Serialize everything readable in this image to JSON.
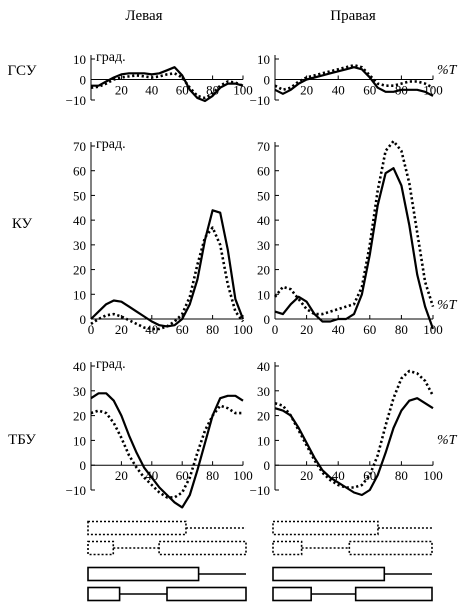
{
  "columns": [
    "Левая",
    "Правая"
  ],
  "rows": [
    "ГСУ",
    "КУ",
    "ТБУ"
  ],
  "unit_label": "град.",
  "pct_label": "%T",
  "chart_data": [
    {
      "type": "line",
      "row": "ГСУ",
      "column": "Левая",
      "xlim": [
        0,
        100
      ],
      "ylim": [
        -10,
        10
      ],
      "xticks": [
        20,
        40,
        60,
        80,
        100
      ],
      "yticks": [
        -10,
        0,
        10
      ],
      "series": [
        {
          "style": "solid",
          "x": [
            0,
            5,
            10,
            15,
            20,
            25,
            30,
            35,
            40,
            45,
            50,
            55,
            60,
            65,
            70,
            75,
            80,
            85,
            90,
            95,
            100
          ],
          "y": [
            -3,
            -3,
            -1,
            1,
            2.5,
            3,
            3,
            3,
            2.5,
            3,
            4.5,
            6,
            2,
            -5,
            -9,
            -10.5,
            -8,
            -4,
            -2,
            -2,
            -3
          ]
        },
        {
          "style": "dotted",
          "x": [
            0,
            5,
            10,
            15,
            20,
            25,
            30,
            35,
            40,
            45,
            50,
            55,
            60,
            65,
            70,
            75,
            80,
            85,
            90,
            95,
            100
          ],
          "y": [
            -4,
            -3.5,
            -2,
            0,
            1,
            1.5,
            2,
            1.5,
            1,
            1.5,
            2.5,
            3,
            1,
            -4,
            -8,
            -9,
            -7,
            -3,
            -1,
            -1.5,
            -3
          ]
        }
      ]
    },
    {
      "type": "line",
      "row": "ГСУ",
      "column": "Правая",
      "xlim": [
        0,
        100
      ],
      "ylim": [
        -10,
        10
      ],
      "xticks": [
        20,
        40,
        60,
        80,
        100
      ],
      "yticks": [
        -10,
        0,
        10
      ],
      "series": [
        {
          "style": "solid",
          "x": [
            0,
            5,
            10,
            15,
            20,
            25,
            30,
            35,
            40,
            45,
            50,
            55,
            60,
            65,
            70,
            75,
            80,
            85,
            90,
            95,
            100
          ],
          "y": [
            -5,
            -7,
            -5,
            -2,
            0,
            1,
            2,
            3,
            4,
            5,
            6,
            5,
            1,
            -4,
            -6,
            -6,
            -5,
            -5,
            -5,
            -6,
            -8
          ]
        },
        {
          "style": "dotted",
          "x": [
            0,
            5,
            10,
            15,
            20,
            25,
            30,
            35,
            40,
            45,
            50,
            55,
            60,
            65,
            70,
            75,
            80,
            85,
            90,
            95,
            100
          ],
          "y": [
            -3,
            -5,
            -4,
            -1,
            1,
            2,
            3,
            4,
            5,
            6,
            7,
            6,
            2,
            -2,
            -3,
            -3,
            -2,
            -1,
            -1,
            -2,
            -4
          ]
        }
      ]
    },
    {
      "type": "line",
      "row": "КУ",
      "column": "Левая",
      "xlim": [
        0,
        100
      ],
      "ylim": [
        0,
        70
      ],
      "xticks": [
        0,
        20,
        40,
        60,
        80,
        100
      ],
      "yticks": [
        0,
        10,
        20,
        30,
        40,
        50,
        60,
        70
      ],
      "series": [
        {
          "style": "solid",
          "x": [
            0,
            5,
            10,
            15,
            20,
            25,
            30,
            35,
            40,
            45,
            50,
            55,
            60,
            65,
            70,
            75,
            80,
            85,
            90,
            95,
            100
          ],
          "y": [
            0,
            3,
            6,
            7.5,
            7,
            5,
            3,
            1,
            -1,
            -2.5,
            -3,
            -2.5,
            0,
            6,
            16,
            32,
            44,
            43,
            28,
            8,
            0
          ]
        },
        {
          "style": "dotted",
          "x": [
            0,
            5,
            10,
            15,
            20,
            25,
            30,
            35,
            40,
            45,
            50,
            55,
            60,
            65,
            70,
            75,
            80,
            85,
            90,
            95,
            100
          ],
          "y": [
            -2,
            0,
            1.5,
            2,
            1,
            -0.5,
            -2,
            -3.5,
            -4,
            -4,
            -3,
            -1,
            2,
            9,
            22,
            33,
            37,
            30,
            14,
            3,
            -1
          ]
        }
      ]
    },
    {
      "type": "line",
      "row": "КУ",
      "column": "Правая",
      "xlim": [
        0,
        100
      ],
      "ylim": [
        0,
        70
      ],
      "xticks": [
        0,
        20,
        40,
        60,
        80,
        100
      ],
      "yticks": [
        0,
        10,
        20,
        30,
        40,
        50,
        60,
        70
      ],
      "series": [
        {
          "style": "solid",
          "x": [
            0,
            5,
            10,
            15,
            20,
            25,
            30,
            35,
            40,
            45,
            50,
            55,
            60,
            65,
            70,
            75,
            80,
            85,
            90,
            95,
            100
          ],
          "y": [
            3,
            2,
            6,
            9,
            7,
            2,
            -1,
            -1,
            0,
            0,
            2,
            10,
            26,
            46,
            59,
            61,
            54,
            38,
            18,
            5,
            -4
          ]
        },
        {
          "style": "dotted",
          "x": [
            0,
            5,
            10,
            15,
            20,
            25,
            30,
            35,
            40,
            45,
            50,
            55,
            60,
            65,
            70,
            75,
            80,
            85,
            90,
            95,
            100
          ],
          "y": [
            9,
            13,
            12,
            8,
            4,
            2,
            2,
            3,
            4,
            5,
            6,
            13,
            30,
            52,
            68,
            72,
            68,
            55,
            35,
            15,
            5
          ]
        }
      ]
    },
    {
      "type": "line",
      "row": "ТБУ",
      "column": "Левая",
      "xlim": [
        0,
        100
      ],
      "ylim": [
        -10,
        40
      ],
      "xticks": [
        20,
        40,
        60,
        80,
        100
      ],
      "yticks": [
        -10,
        0,
        10,
        20,
        30,
        40
      ],
      "series": [
        {
          "style": "solid",
          "x": [
            0,
            5,
            10,
            15,
            20,
            25,
            30,
            35,
            40,
            45,
            50,
            55,
            60,
            65,
            70,
            75,
            80,
            85,
            90,
            95,
            100
          ],
          "y": [
            27,
            29,
            29,
            26,
            20,
            12,
            5,
            -1,
            -5,
            -9,
            -12,
            -15,
            -17,
            -12,
            -2,
            9,
            20,
            27,
            28,
            28,
            26
          ]
        },
        {
          "style": "dotted",
          "x": [
            0,
            5,
            10,
            15,
            20,
            25,
            30,
            35,
            40,
            45,
            50,
            55,
            60,
            65,
            70,
            75,
            80,
            85,
            90,
            95,
            100
          ],
          "y": [
            21,
            22,
            21,
            17,
            11,
            4,
            -1,
            -5,
            -8,
            -11,
            -13,
            -13,
            -11,
            -5,
            5,
            14,
            20,
            24,
            23,
            21,
            21
          ]
        }
      ]
    },
    {
      "type": "line",
      "row": "ТБУ",
      "column": "Правая",
      "xlim": [
        0,
        100
      ],
      "ylim": [
        -10,
        40
      ],
      "xticks": [
        20,
        40,
        60,
        80,
        100
      ],
      "yticks": [
        -10,
        0,
        10,
        20,
        30,
        40
      ],
      "series": [
        {
          "style": "solid",
          "x": [
            0,
            5,
            10,
            15,
            20,
            25,
            30,
            35,
            40,
            45,
            50,
            55,
            60,
            65,
            70,
            75,
            80,
            85,
            90,
            95,
            100
          ],
          "y": [
            23,
            22,
            20,
            15,
            9,
            3,
            -2,
            -5,
            -7,
            -9,
            -11,
            -12,
            -10,
            -4,
            5,
            15,
            22,
            26,
            27,
            25,
            23
          ]
        },
        {
          "style": "dotted",
          "x": [
            0,
            5,
            10,
            15,
            20,
            25,
            30,
            35,
            40,
            45,
            50,
            55,
            60,
            65,
            70,
            75,
            80,
            85,
            90,
            95,
            100
          ],
          "y": [
            25,
            24,
            20,
            14,
            8,
            2,
            -3,
            -6,
            -8,
            -9,
            -9,
            -8,
            -4,
            4,
            16,
            27,
            35,
            38,
            37,
            34,
            28
          ]
        }
      ]
    }
  ],
  "gait_phases": [
    {
      "column": "Левая",
      "style": "dotted",
      "segments": [
        [
          0,
          62
        ],
        [
          0,
          16
        ],
        [
          45,
          100
        ]
      ]
    },
    {
      "column": "Правая",
      "style": "dotted",
      "segments": [
        [
          0,
          66
        ],
        [
          0,
          18
        ],
        [
          48,
          100
        ]
      ]
    },
    {
      "column": "Левая",
      "style": "solid",
      "segments": [
        [
          0,
          70
        ],
        [
          0,
          20
        ],
        [
          50,
          100
        ]
      ]
    },
    {
      "column": "Правая",
      "style": "solid",
      "segments": [
        [
          0,
          70
        ],
        [
          0,
          24
        ],
        [
          52,
          100
        ]
      ]
    }
  ]
}
